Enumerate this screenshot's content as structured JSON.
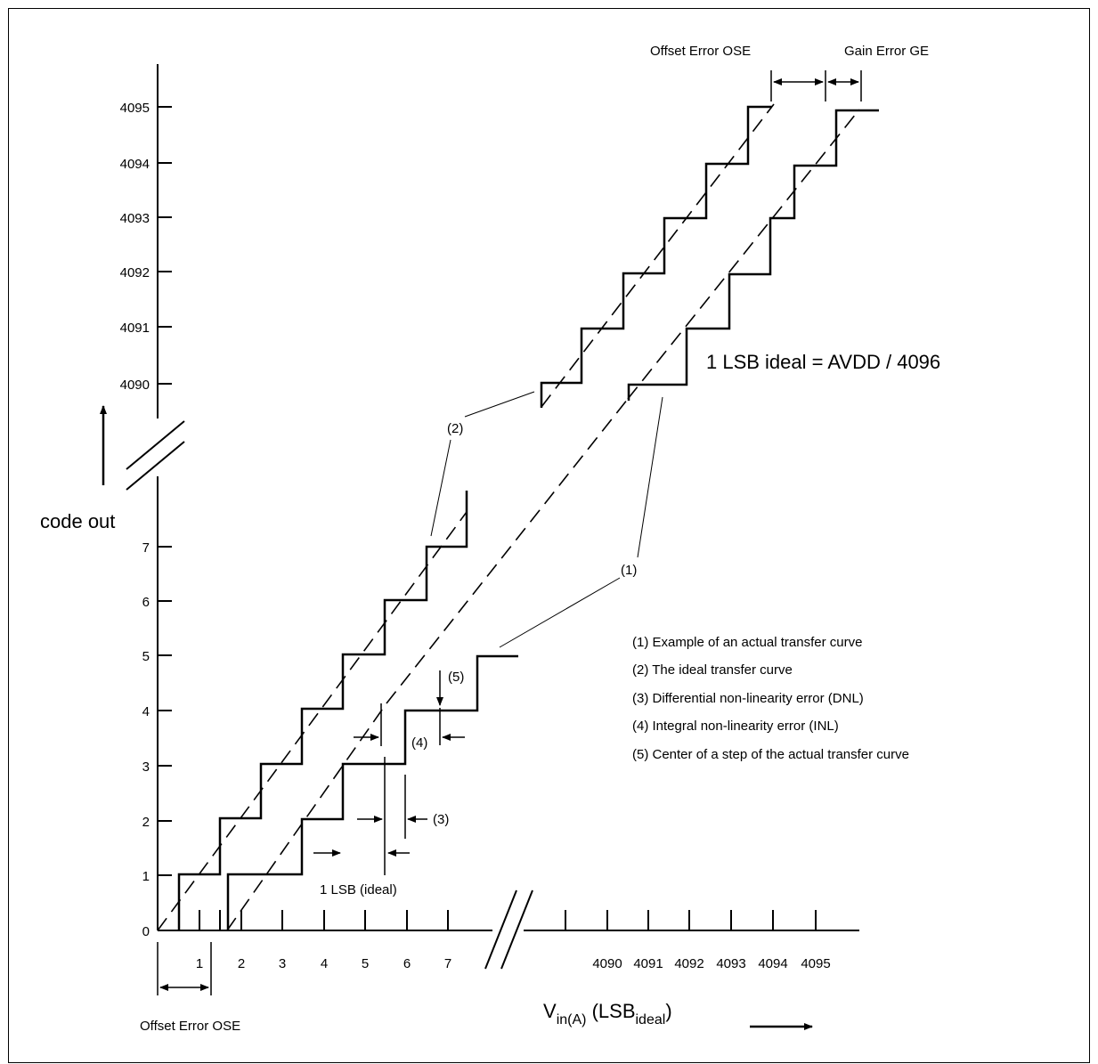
{
  "diagram": {
    "y_axis": {
      "label": "code out",
      "ticks_low": [
        "0",
        "1",
        "2",
        "3",
        "4",
        "5",
        "6",
        "7"
      ],
      "ticks_high": [
        "4090",
        "4091",
        "4092",
        "4093",
        "4094",
        "4095"
      ]
    },
    "x_axis": {
      "label_main": "V",
      "label_sub": "in(A)",
      "label_paren_open": " (LSB",
      "label_paren_sub": "ideal",
      "label_paren_close": ")",
      "ticks_low": [
        "1",
        "2",
        "3",
        "4",
        "5",
        "6",
        "7"
      ],
      "ticks_high": [
        "4090",
        "4091",
        "4092",
        "4093",
        "4094",
        "4095"
      ]
    },
    "annotations": {
      "offset_error_top": "Offset Error OSE",
      "gain_error_top": "Gain Error GE",
      "offset_error_bottom": "Offset Error OSE",
      "lsb_ideal_eq": "1 LSB ideal = AVDD / 4096",
      "one_lsb_ideal": "1 LSB (ideal)",
      "marker_1": "(1)",
      "marker_2": "(2)",
      "marker_3": "(3)",
      "marker_4": "(4)",
      "marker_5": "(5)"
    },
    "legend": [
      "(1) Example of an actual transfer curve",
      "(2) The ideal transfer curve",
      "(3) Differential non-linearity error (DNL)",
      "(4) Integral non-linearity error (INL)",
      "(5) Center of a step of the actual transfer curve"
    ]
  }
}
